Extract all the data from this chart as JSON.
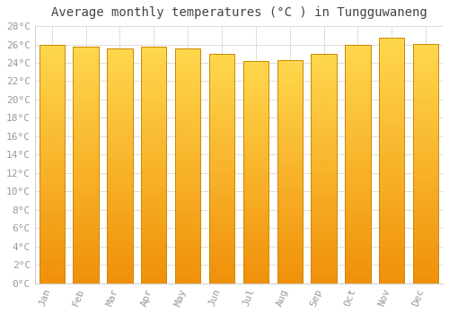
{
  "title": "Average monthly temperatures (°C ) in Tungguwaneng",
  "months": [
    "Jan",
    "Feb",
    "Mar",
    "Apr",
    "May",
    "Jun",
    "Jul",
    "Aug",
    "Sep",
    "Oct",
    "Nov",
    "Dec"
  ],
  "values": [
    26.0,
    25.8,
    25.6,
    25.8,
    25.6,
    25.0,
    24.2,
    24.3,
    25.0,
    26.0,
    26.7,
    26.1
  ],
  "bar_color_top": "#FFD84D",
  "bar_color_bottom": "#F0900A",
  "bar_edge_color": "#CC8800",
  "background_color": "#ffffff",
  "grid_color": "#dddddd",
  "tick_color": "#999999",
  "title_color": "#444444",
  "ylim": [
    0,
    28
  ],
  "ytick_step": 2,
  "title_fontsize": 10,
  "tick_fontsize": 8,
  "bar_width": 0.75
}
